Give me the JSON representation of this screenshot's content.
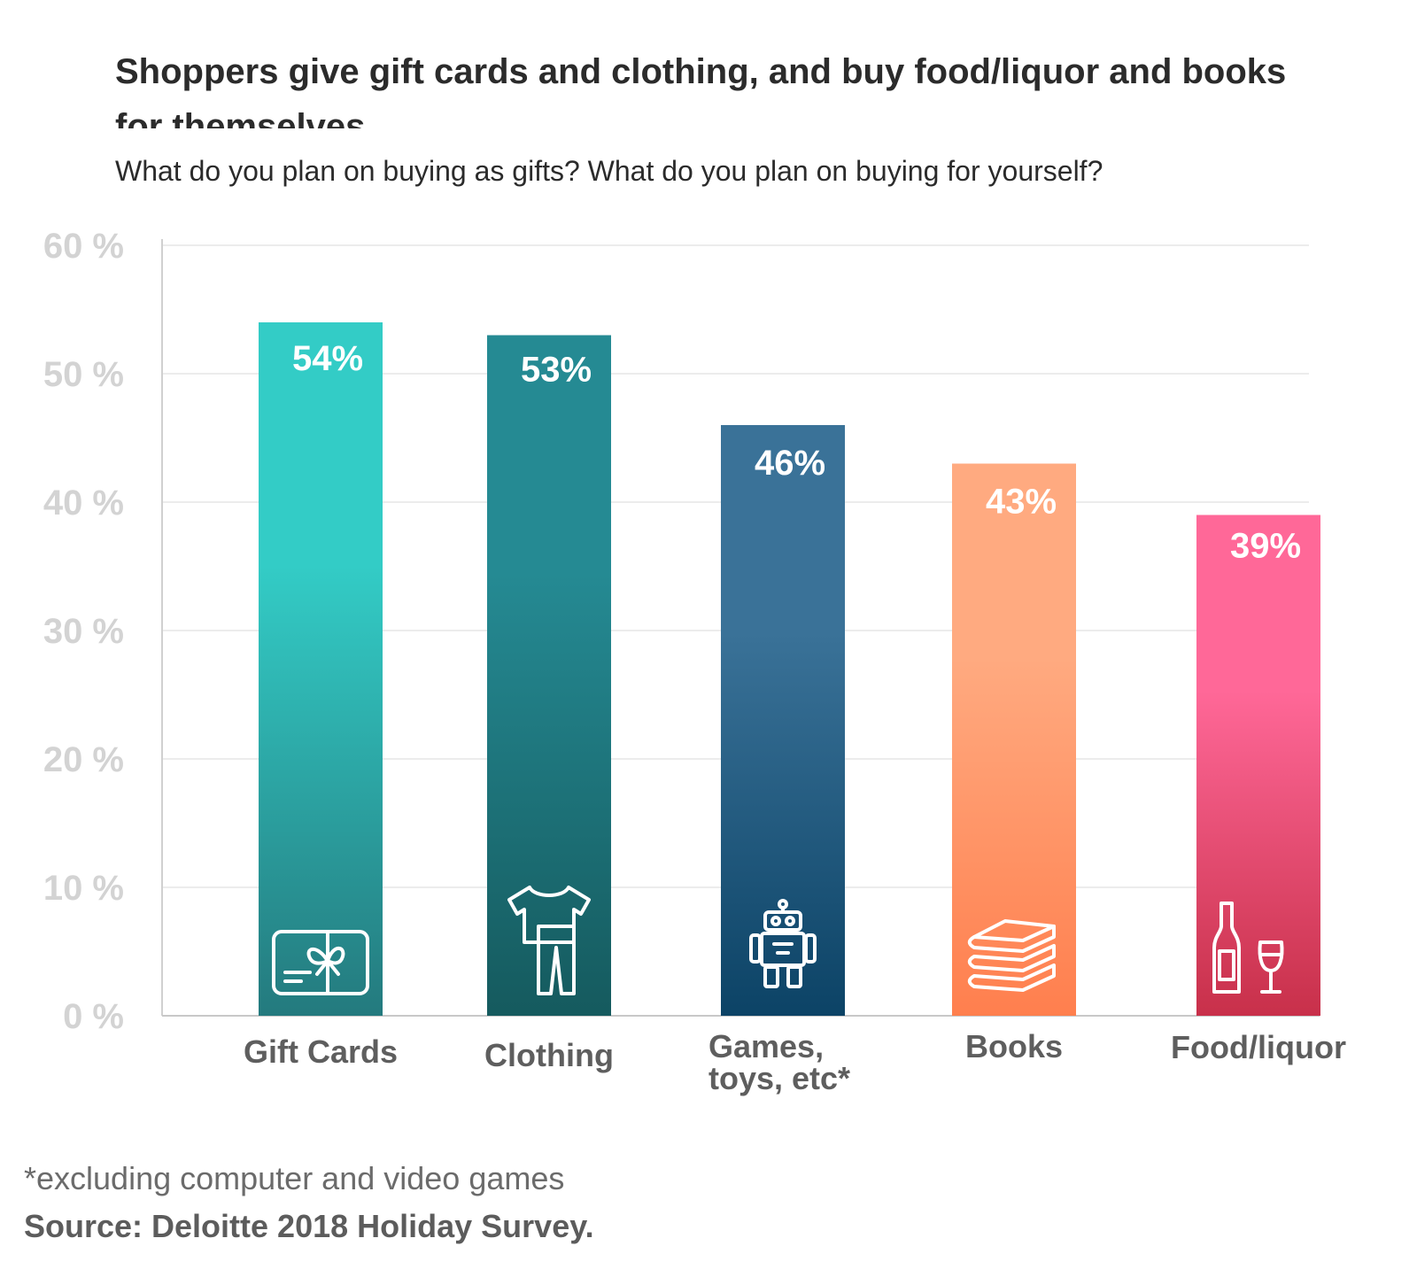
{
  "title": "Shoppers give gift cards and clothing, and buy food/liquor and books for themselves",
  "subtitle": "What do you plan on buying as gifts? What do you plan on buying for yourself?",
  "footnote": "*excluding computer and video games",
  "source": "Source: Deloitte 2018 Holiday Survey.",
  "chart_data": {
    "type": "bar",
    "title": "Shoppers give gift cards and clothing, and buy food/liquor and books for themselves",
    "xlabel": "",
    "ylabel": "",
    "ylim": [
      0,
      60
    ],
    "grid": true,
    "yticks": [
      {
        "value": 0,
        "label": "0 %"
      },
      {
        "value": 10,
        "label": "10 %"
      },
      {
        "value": 20,
        "label": "20 %"
      },
      {
        "value": 30,
        "label": "30 %"
      },
      {
        "value": 40,
        "label": "40 %"
      },
      {
        "value": 50,
        "label": "50 %"
      },
      {
        "value": 60,
        "label": "60 %"
      }
    ],
    "categories": [
      "Gift Cards",
      "Clothing",
      "Games, toys, etc*",
      "Books",
      "Food/liquor"
    ],
    "category_lines": [
      [
        "Gift Cards"
      ],
      [
        "Clothing"
      ],
      [
        "Games,",
        "toys, etc*"
      ],
      [
        "Books"
      ],
      [
        "Food/liquor"
      ]
    ],
    "values": [
      54,
      53,
      46,
      43,
      39
    ],
    "value_labels": [
      "54%",
      "53%",
      "46%",
      "43%",
      "39%"
    ],
    "icons": [
      "gift-card-icon",
      "clothing-icon",
      "robot-icon",
      "books-icon",
      "wine-icon"
    ],
    "colors": [
      [
        "#33ccc6",
        "#247a7e"
      ],
      [
        "#258a93",
        "#155a5e"
      ],
      [
        "#3a7298",
        "#0c4366"
      ],
      [
        "#ffaa80",
        "#ff7f4e"
      ],
      [
        "#ff6898",
        "#c8304a"
      ]
    ]
  }
}
